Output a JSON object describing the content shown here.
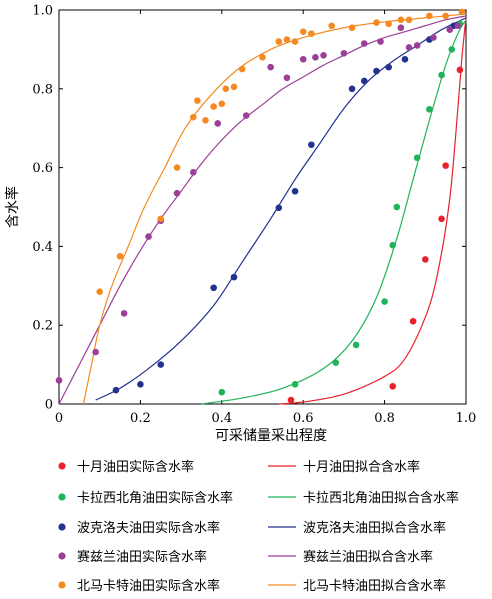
{
  "chart_data": {
    "type": "scatter",
    "xlabel": "可采储量采出程度",
    "ylabel": "含水率",
    "xlim": [
      0,
      1.0
    ],
    "ylim": [
      0,
      1.0
    ],
    "xticks": [
      "0",
      "0.2",
      "0.4",
      "0.6",
      "0.8",
      "1.0"
    ],
    "yticks": [
      "0",
      "0.2",
      "0.4",
      "0.6",
      "0.8",
      "1.0"
    ],
    "xtick_values": [
      0,
      0.2,
      0.4,
      0.6,
      0.8,
      1.0
    ],
    "ytick_values": [
      0,
      0.2,
      0.4,
      0.6,
      0.8,
      1.0
    ],
    "grid": false,
    "legend_position": "bottom",
    "series": [
      {
        "key": "s1",
        "color": "#e8222b",
        "scatter_name": "十月油田实际含水率",
        "fit_name": "十月油田拟合含水率",
        "points": [
          [
            0.57,
            0.01
          ],
          [
            0.82,
            0.045
          ],
          [
            0.87,
            0.21
          ],
          [
            0.9,
            0.367
          ],
          [
            0.94,
            0.47
          ],
          [
            0.95,
            0.605
          ],
          [
            0.985,
            0.848
          ]
        ],
        "fit": [
          [
            0.54,
            0.0
          ],
          [
            0.6,
            0.005
          ],
          [
            0.7,
            0.025
          ],
          [
            0.8,
            0.07
          ],
          [
            0.85,
            0.115
          ],
          [
            0.9,
            0.22
          ],
          [
            0.93,
            0.33
          ],
          [
            0.96,
            0.52
          ],
          [
            0.98,
            0.75
          ],
          [
            0.99,
            0.88
          ],
          [
            1.0,
            0.98
          ]
        ]
      },
      {
        "key": "s2",
        "color": "#1fb35a",
        "scatter_name": "卡拉西北角油田实际含水率",
        "fit_name": "卡拉西北角油田拟合含水率",
        "points": [
          [
            0.4,
            0.03
          ],
          [
            0.58,
            0.05
          ],
          [
            0.68,
            0.105
          ],
          [
            0.73,
            0.15
          ],
          [
            0.8,
            0.26
          ],
          [
            0.82,
            0.403
          ],
          [
            0.83,
            0.5
          ],
          [
            0.88,
            0.625
          ],
          [
            0.91,
            0.748
          ],
          [
            0.94,
            0.835
          ],
          [
            0.965,
            0.9
          ],
          [
            0.985,
            0.965
          ]
        ],
        "fit": [
          [
            0.35,
            0.0
          ],
          [
            0.45,
            0.015
          ],
          [
            0.55,
            0.04
          ],
          [
            0.65,
            0.09
          ],
          [
            0.72,
            0.16
          ],
          [
            0.78,
            0.27
          ],
          [
            0.83,
            0.42
          ],
          [
            0.87,
            0.57
          ],
          [
            0.91,
            0.72
          ],
          [
            0.95,
            0.86
          ],
          [
            0.98,
            0.94
          ],
          [
            1.0,
            0.975
          ]
        ]
      },
      {
        "key": "s3",
        "color": "#23318f",
        "scatter_name": "波克洛夫油田实际含水率",
        "fit_name": "波克洛夫油田拟合含水率",
        "points": [
          [
            0.14,
            0.035
          ],
          [
            0.2,
            0.05
          ],
          [
            0.25,
            0.1
          ],
          [
            0.38,
            0.295
          ],
          [
            0.43,
            0.322
          ],
          [
            0.54,
            0.498
          ],
          [
            0.58,
            0.54
          ],
          [
            0.62,
            0.658
          ],
          [
            0.72,
            0.8
          ],
          [
            0.75,
            0.82
          ],
          [
            0.78,
            0.845
          ],
          [
            0.81,
            0.855
          ],
          [
            0.85,
            0.875
          ],
          [
            0.91,
            0.925
          ],
          [
            0.97,
            0.96
          ]
        ],
        "fit": [
          [
            0.09,
            0.01
          ],
          [
            0.15,
            0.04
          ],
          [
            0.22,
            0.09
          ],
          [
            0.3,
            0.16
          ],
          [
            0.38,
            0.25
          ],
          [
            0.45,
            0.36
          ],
          [
            0.52,
            0.47
          ],
          [
            0.58,
            0.57
          ],
          [
            0.64,
            0.66
          ],
          [
            0.7,
            0.75
          ],
          [
            0.76,
            0.82
          ],
          [
            0.82,
            0.87
          ],
          [
            0.88,
            0.91
          ],
          [
            0.94,
            0.95
          ],
          [
            1.0,
            0.98
          ]
        ]
      },
      {
        "key": "s4",
        "color": "#9b3f97",
        "scatter_name": "赛兹兰油田实际含水率",
        "fit_name": "赛兹兰油田拟合含水率",
        "points": [
          [
            0.0,
            0.06
          ],
          [
            0.09,
            0.132
          ],
          [
            0.16,
            0.23
          ],
          [
            0.22,
            0.425
          ],
          [
            0.25,
            0.465
          ],
          [
            0.29,
            0.535
          ],
          [
            0.33,
            0.588
          ],
          [
            0.39,
            0.712
          ],
          [
            0.46,
            0.732
          ],
          [
            0.52,
            0.855
          ],
          [
            0.56,
            0.828
          ],
          [
            0.6,
            0.875
          ],
          [
            0.63,
            0.88
          ],
          [
            0.65,
            0.885
          ],
          [
            0.7,
            0.89
          ],
          [
            0.75,
            0.915
          ],
          [
            0.79,
            0.92
          ],
          [
            0.84,
            0.955
          ],
          [
            0.86,
            0.905
          ],
          [
            0.88,
            0.91
          ],
          [
            0.92,
            0.93
          ],
          [
            0.96,
            0.95
          ],
          [
            0.98,
            0.96
          ]
        ],
        "fit": [
          [
            0.0,
            0.0
          ],
          [
            0.05,
            0.1
          ],
          [
            0.1,
            0.2
          ],
          [
            0.15,
            0.3
          ],
          [
            0.2,
            0.39
          ],
          [
            0.25,
            0.47
          ],
          [
            0.3,
            0.54
          ],
          [
            0.35,
            0.61
          ],
          [
            0.4,
            0.67
          ],
          [
            0.45,
            0.72
          ],
          [
            0.5,
            0.76
          ],
          [
            0.55,
            0.8
          ],
          [
            0.6,
            0.83
          ],
          [
            0.65,
            0.86
          ],
          [
            0.7,
            0.885
          ],
          [
            0.75,
            0.91
          ],
          [
            0.8,
            0.93
          ],
          [
            0.85,
            0.945
          ],
          [
            0.9,
            0.96
          ],
          [
            0.95,
            0.975
          ],
          [
            1.0,
            0.985
          ]
        ]
      },
      {
        "key": "s5",
        "color": "#f58a22",
        "scatter_name": "北马卡特油田实际含水率",
        "fit_name": "北马卡特油田拟合含水率",
        "points": [
          [
            0.1,
            0.285
          ],
          [
            0.15,
            0.375
          ],
          [
            0.25,
            0.47
          ],
          [
            0.29,
            0.6
          ],
          [
            0.33,
            0.728
          ],
          [
            0.34,
            0.77
          ],
          [
            0.36,
            0.72
          ],
          [
            0.38,
            0.755
          ],
          [
            0.4,
            0.762
          ],
          [
            0.41,
            0.8
          ],
          [
            0.43,
            0.805
          ],
          [
            0.45,
            0.85
          ],
          [
            0.5,
            0.88
          ],
          [
            0.54,
            0.92
          ],
          [
            0.56,
            0.925
          ],
          [
            0.58,
            0.92
          ],
          [
            0.6,
            0.945
          ],
          [
            0.62,
            0.94
          ],
          [
            0.67,
            0.96
          ],
          [
            0.72,
            0.955
          ],
          [
            0.78,
            0.968
          ],
          [
            0.81,
            0.965
          ],
          [
            0.84,
            0.975
          ],
          [
            0.86,
            0.975
          ],
          [
            0.91,
            0.985
          ],
          [
            0.95,
            0.985
          ],
          [
            0.99,
            0.995
          ]
        ],
        "fit": [
          [
            0.06,
            0.0
          ],
          [
            0.08,
            0.1
          ],
          [
            0.1,
            0.2
          ],
          [
            0.13,
            0.3
          ],
          [
            0.17,
            0.4
          ],
          [
            0.21,
            0.5
          ],
          [
            0.26,
            0.6
          ],
          [
            0.31,
            0.7
          ],
          [
            0.37,
            0.78
          ],
          [
            0.44,
            0.85
          ],
          [
            0.52,
            0.9
          ],
          [
            0.6,
            0.93
          ],
          [
            0.7,
            0.955
          ],
          [
            0.8,
            0.97
          ],
          [
            0.9,
            0.98
          ],
          [
            1.0,
            0.99
          ]
        ]
      }
    ]
  }
}
